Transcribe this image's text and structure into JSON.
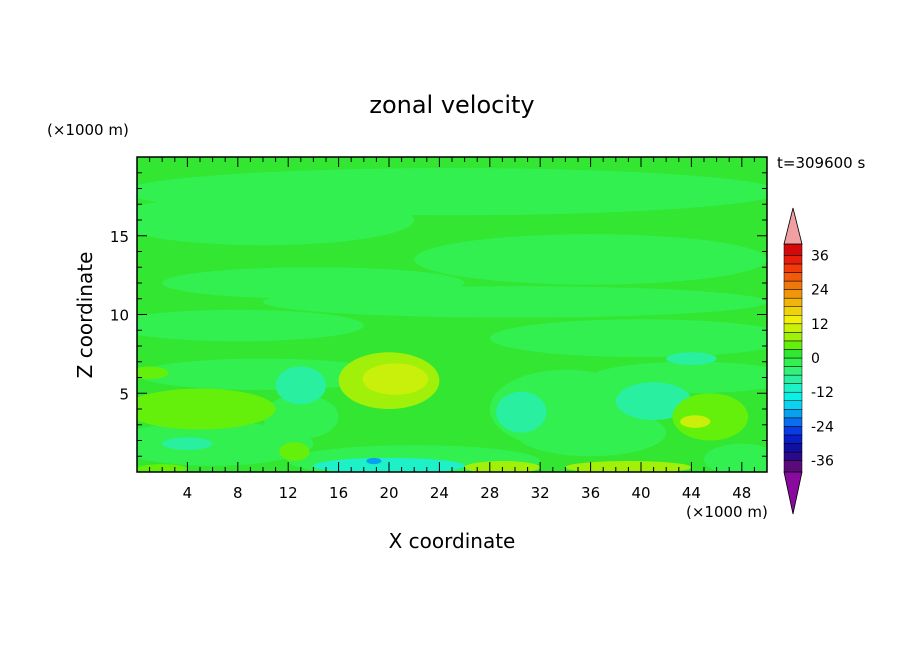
{
  "chart_data": {
    "type": "heatmap",
    "title": "zonal velocity",
    "xlabel": "X coordinate",
    "ylabel": "Z coordinate",
    "x_unit": "(×1000 m)",
    "y_unit": "(×1000 m)",
    "time_label": "t=309600 s",
    "xlim": [
      0,
      50
    ],
    "ylim": [
      0,
      20
    ],
    "x_ticks": [
      4,
      8,
      12,
      16,
      20,
      24,
      28,
      32,
      36,
      40,
      44,
      48
    ],
    "y_ticks": [
      5,
      10,
      15
    ],
    "colorbar": {
      "levels": [
        -40,
        -36,
        -33,
        -30,
        -27,
        -24,
        -21,
        -18,
        -15,
        -12,
        -9,
        -6,
        -3,
        0,
        3,
        6,
        9,
        12,
        15,
        18,
        21,
        24,
        27,
        30,
        33,
        36,
        40
      ],
      "labels": [
        "36",
        "24",
        "12",
        "0",
        "-12",
        "-24",
        "-36"
      ],
      "label_values": [
        36,
        24,
        12,
        0,
        -12,
        -24,
        -36
      ],
      "colors": [
        "#5a0a7a",
        "#2a0a8a",
        "#1010a0",
        "#0a1ec8",
        "#0a3ce6",
        "#0a6ef0",
        "#0aa0f0",
        "#0ad2f0",
        "#0af0e6",
        "#1ef0c8",
        "#28f0a0",
        "#32f078",
        "#32f050",
        "#32e632",
        "#64f00a",
        "#a0f00a",
        "#c8f00a",
        "#f0f00a",
        "#f0d20a",
        "#f0b40a",
        "#f0960a",
        "#f0780a",
        "#f05a0a",
        "#f03c0a",
        "#e61e0a",
        "#d20a0a"
      ],
      "under_color": "#8a0aa0",
      "over_color": "#f0a0a0"
    },
    "grid": false,
    "field_description": "velocity mostly in -3..3 range; positive patches near x=16-24 z=3-8, x=28-31 z=0-1, x=44-48 z=2-4; negative patches near x=16-24 z=0-1.5, x=44-48 z=0-1"
  }
}
